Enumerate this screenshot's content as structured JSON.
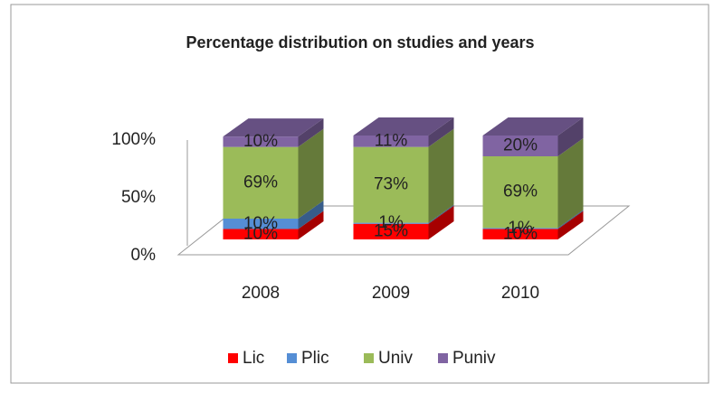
{
  "chart_data": {
    "type": "bar3d-stacked",
    "title": "Percentage distribution on studies and years",
    "categories": [
      "2008",
      "2009",
      "2010"
    ],
    "series": [
      {
        "name": "Lic",
        "color": "#ff0000",
        "values": [
          10,
          15,
          10
        ],
        "value_labels": [
          "10%",
          "15%",
          "10%"
        ]
      },
      {
        "name": "Plic",
        "color": "#558ed5",
        "values": [
          10,
          1,
          1
        ],
        "value_labels": [
          "10%",
          "1%",
          "1%"
        ]
      },
      {
        "name": "Univ",
        "color": "#9bbb59",
        "values": [
          69,
          73,
          69
        ],
        "value_labels": [
          "69%",
          "73%",
          "69%"
        ]
      },
      {
        "name": "Puniv",
        "color": "#8064a2",
        "values": [
          10,
          11,
          20
        ],
        "value_labels": [
          "10%",
          "11%",
          "20%"
        ]
      }
    ],
    "ylim": [
      0,
      100
    ],
    "yticks": [
      {
        "value": 0,
        "label": "0%"
      },
      {
        "value": 50,
        "label": "50%"
      },
      {
        "value": 100,
        "label": "100%"
      }
    ],
    "legend": "bottom"
  }
}
